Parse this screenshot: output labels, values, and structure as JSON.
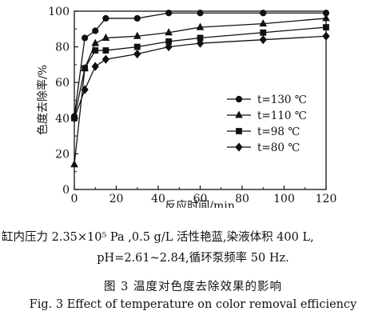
{
  "chart_data": {
    "type": "line",
    "xlabel": "反应时间/min",
    "ylabel": "色度去除率/%",
    "xlim": [
      0,
      120
    ],
    "ylim": [
      0,
      100
    ],
    "xticks": [
      "0",
      "20",
      "40",
      "60",
      "80",
      "100",
      "120"
    ],
    "yticks": [
      "0",
      "20",
      "40",
      "60",
      "80",
      "100"
    ],
    "grid": false,
    "legend_position": "center-right",
    "series": [
      {
        "name": "t=130 ℃",
        "marker": "circle",
        "x": [
          0,
          5,
          10,
          15,
          30,
          45,
          60,
          90,
          120
        ],
        "y": [
          41,
          85,
          89,
          96,
          96,
          99,
          99,
          99,
          99
        ]
      },
      {
        "name": "t=110 ℃",
        "marker": "triangle",
        "x": [
          0,
          5,
          10,
          15,
          30,
          45,
          60,
          90,
          120
        ],
        "y": [
          14,
          68,
          82,
          85,
          86,
          88,
          91,
          93,
          96
        ]
      },
      {
        "name": "t=98 ℃",
        "marker": "square",
        "x": [
          0,
          5,
          10,
          15,
          30,
          45,
          60,
          90,
          120
        ],
        "y": [
          40,
          68,
          78,
          78,
          80,
          83,
          85,
          88,
          91
        ]
      },
      {
        "name": "t=80 ℃",
        "marker": "diamond",
        "x": [
          0,
          5,
          10,
          15,
          30,
          45,
          60,
          90,
          120
        ],
        "y": [
          40,
          56,
          69,
          73,
          76,
          80,
          82,
          84,
          86
        ]
      }
    ]
  },
  "caption": {
    "note_line1": "缸内压力 2.35×10⁵ Pa ,0.5 g/L 活性艳蓝,染液体积 400 L,",
    "note_line2": "pH=2.61~2.84,循环泵频率 50 Hz.",
    "figure_title_cn": "图 3   温度对色度去除效果的影响",
    "figure_title_en": "Fig. 3   Effect of temperature on color removal efficiency"
  }
}
